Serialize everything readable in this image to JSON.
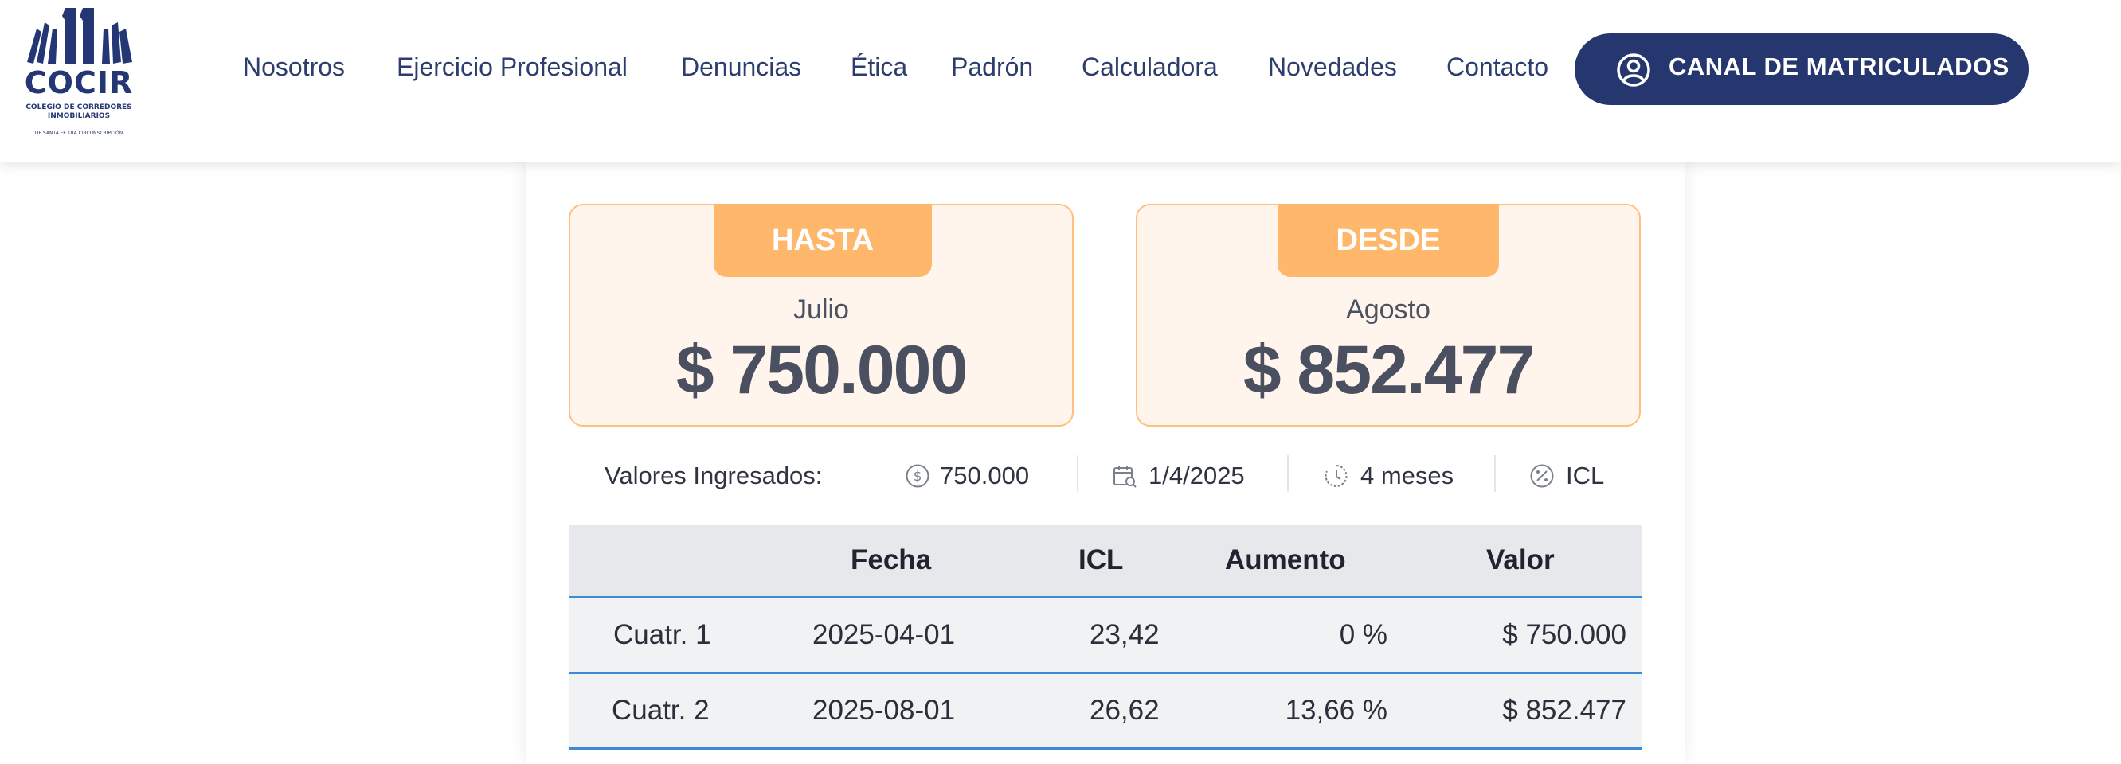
{
  "logo": {
    "word": "COCIR",
    "subtitle": "Colegio de Corredores Inmobiliarios",
    "tagline": "de Santa Fe 1ra Circunscripción",
    "brand_color": "#243674",
    "icon": "cocir-logo-icon"
  },
  "nav": {
    "items": [
      {
        "label": "Nosotros"
      },
      {
        "label": "Ejercicio Profesional"
      },
      {
        "label": "Denuncias"
      },
      {
        "label": "Ética"
      },
      {
        "label": "Padrón"
      },
      {
        "label": "Calculadora"
      },
      {
        "label": "Novedades"
      },
      {
        "label": "Contacto"
      }
    ],
    "canal_button": {
      "label": "CANAL DE MATRICULADOS",
      "icon": "user-circle-icon",
      "color": "#26366e"
    }
  },
  "results": {
    "hasta": {
      "tab": "HASTA",
      "month": "Julio",
      "amount": "$ 750.000"
    },
    "desde": {
      "tab": "DESDE",
      "month": "Agosto",
      "amount": "$ 852.477"
    },
    "accent_color": "#ffb86b"
  },
  "summary": {
    "label": "Valores Ingresados:",
    "amount": {
      "icon": "dollar-circle-icon",
      "value": "750.000"
    },
    "date": {
      "icon": "calendar-search-icon",
      "value": "1/4/2025"
    },
    "period": {
      "icon": "clock-icon",
      "value": "4 meses"
    },
    "index": {
      "icon": "percent-circle-icon",
      "value": "ICL"
    }
  },
  "table": {
    "headers": [
      "",
      "Fecha",
      "ICL",
      "Aumento",
      "Valor"
    ],
    "rows": [
      [
        "Cuatr. 1",
        "2025-04-01",
        "23,42",
        "0 %",
        "$ 750.000"
      ],
      [
        "Cuatr. 2",
        "2025-08-01",
        "26,62",
        "13,66 %",
        "$ 852.477"
      ]
    ],
    "border_color": "#3c8ad8"
  }
}
